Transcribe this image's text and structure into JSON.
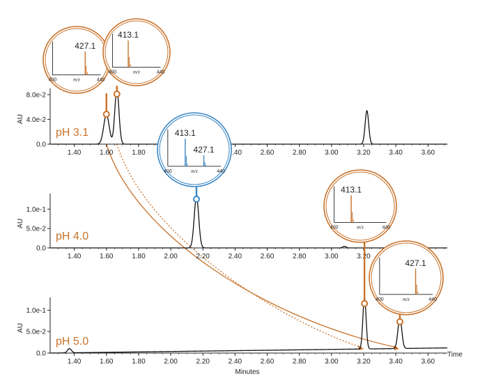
{
  "chart_data": {
    "type": "line",
    "xlabel": "Minutes",
    "x_end_label": "Time",
    "ylabel": "AU",
    "xlim": [
      1.25,
      3.72
    ],
    "x_ticks": [
      "1.40",
      "1.60",
      "1.80",
      "2.00",
      "2.20",
      "2.40",
      "2.60",
      "2.80",
      "3.00",
      "3.20",
      "3.40",
      "3.60"
    ],
    "panels": [
      {
        "label": "pH 3.1",
        "ylim": [
          0,
          0.09
        ],
        "y_ticks": [
          {
            "v": 0,
            "label": "0.0"
          },
          {
            "v": 0.04,
            "label": "4.0e-2"
          },
          {
            "v": 0.08,
            "label": "8.0e-2"
          }
        ],
        "peaks": [
          {
            "x": 1.6,
            "h": 0.048,
            "w": 0.017
          },
          {
            "x": 1.665,
            "h": 0.088,
            "w": 0.013
          },
          {
            "x": 3.22,
            "h": 0.054,
            "w": 0.011
          }
        ]
      },
      {
        "label": "pH 4.0",
        "ylim": [
          0,
          0.14
        ],
        "y_ticks": [
          {
            "v": 0,
            "label": "0.0"
          },
          {
            "v": 0.05,
            "label": "5.0e-2"
          },
          {
            "v": 0.1,
            "label": "1.0e-1"
          }
        ],
        "peaks": [
          {
            "x": 2.16,
            "h": 0.132,
            "w": 0.014
          },
          {
            "x": 3.08,
            "h": 0.004,
            "w": 0.01
          }
        ]
      },
      {
        "label": "pH 5.0",
        "ylim": [
          0,
          0.13
        ],
        "y_ticks": [
          {
            "v": 0,
            "label": "0.0"
          },
          {
            "v": 0.05,
            "label": "5.0e-2"
          },
          {
            "v": 0.1,
            "label": "1.0e-1"
          }
        ],
        "baseline_rise": 0.012,
        "peaks": [
          {
            "x": 1.37,
            "h": 0.01,
            "w": 0.012
          },
          {
            "x": 3.205,
            "h": 0.12,
            "w": 0.01
          },
          {
            "x": 3.425,
            "h": 0.072,
            "w": 0.012
          }
        ]
      }
    ],
    "mass_spectra": [
      {
        "panel": 0,
        "peak_x": 1.6,
        "color": "#c8722a",
        "range": [
          "400",
          "440"
        ],
        "unit": "m/z",
        "labels": [
          "427.1"
        ],
        "lines": [
          {
            "mz": 427.1,
            "rel": 0.7
          }
        ]
      },
      {
        "panel": 0,
        "peak_x": 1.665,
        "color": "#c8722a",
        "range": [
          "400",
          "440"
        ],
        "unit": "m/z",
        "labels": [
          "413.1"
        ],
        "lines": [
          {
            "mz": 413.1,
            "rel": 0.8
          }
        ]
      },
      {
        "panel": 1,
        "peak_x": 2.16,
        "color": "#3a86c4",
        "range": [
          "400",
          "440"
        ],
        "unit": "m/z",
        "labels": [
          "413.1",
          "427.1"
        ],
        "lines": [
          {
            "mz": 413.1,
            "rel": 0.75
          },
          {
            "mz": 427.1,
            "rel": 0.3
          }
        ]
      },
      {
        "panel": 2,
        "peak_x": 3.205,
        "color": "#c8722a",
        "range": [
          "400",
          "440"
        ],
        "unit": "m/z",
        "labels": [
          "413.1"
        ],
        "lines": [
          {
            "mz": 413.1,
            "rel": 0.75
          }
        ]
      },
      {
        "panel": 2,
        "peak_x": 3.425,
        "color": "#c8722a",
        "range": [
          "400",
          "440"
        ],
        "unit": "m/z",
        "labels": [
          "427.1"
        ],
        "lines": [
          {
            "mz": 427.1,
            "rel": 0.7
          }
        ]
      }
    ],
    "shift_arrows": [
      {
        "from_panel": 0,
        "from_x": 1.6,
        "to_panel": 2,
        "to_x": 3.425,
        "style": "solid"
      },
      {
        "from_panel": 0,
        "from_x": 1.665,
        "to_panel": 2,
        "to_x": 3.205,
        "style": "dotted"
      }
    ],
    "colors": {
      "orange": "#c8722a",
      "blue": "#3a86c4",
      "trace": "#111111"
    }
  }
}
